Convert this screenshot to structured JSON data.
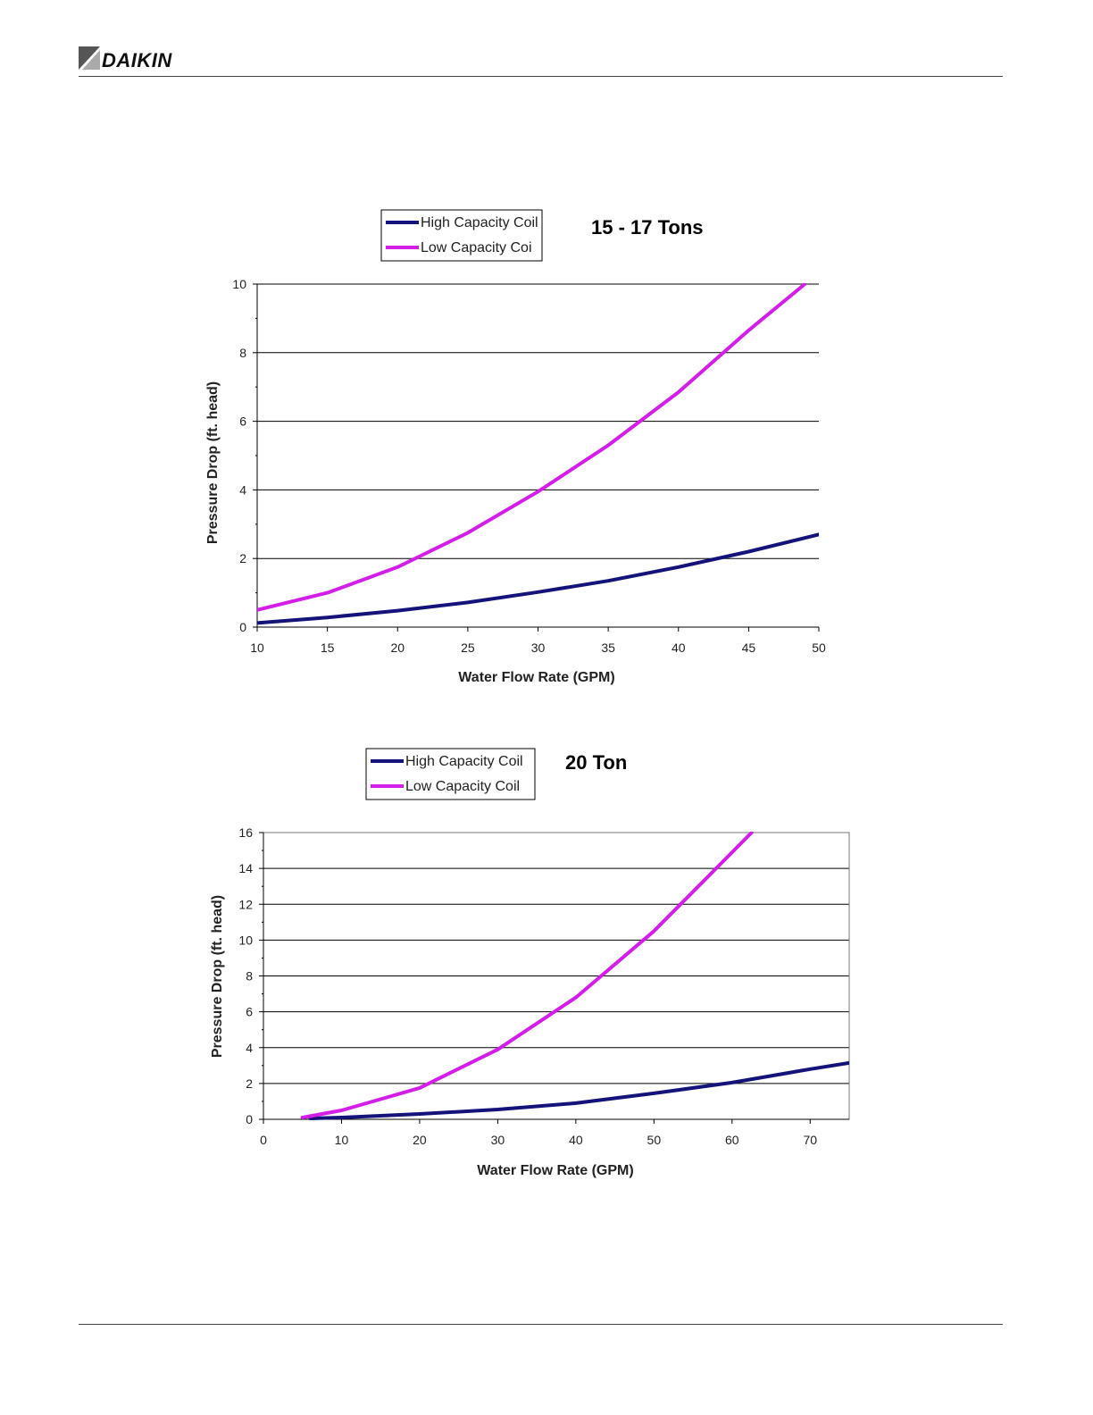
{
  "header": {
    "brand": "DAIKIN",
    "brand_color": "#111111",
    "mark_color": "#555555"
  },
  "chart_data": [
    {
      "type": "line",
      "title": "15 - 17 Tons",
      "xlabel": "Water Flow Rate (GPM)",
      "ylabel": "Pressure Drop (ft. head)",
      "xlim": [
        10,
        50
      ],
      "ylim": [
        0,
        10
      ],
      "xticks": [
        10,
        15,
        20,
        25,
        30,
        35,
        40,
        45,
        50
      ],
      "yticks": [
        0,
        2,
        4,
        6,
        8,
        10
      ],
      "grid": "horizontal",
      "legend": "top-left",
      "series": [
        {
          "name": "High Capacity Coil",
          "color": "#13137a",
          "x": [
            10,
            15,
            20,
            25,
            30,
            35,
            40,
            45,
            50
          ],
          "y": [
            0.12,
            0.28,
            0.48,
            0.72,
            1.02,
            1.35,
            1.75,
            2.2,
            2.7
          ]
        },
        {
          "name": "Low Capacity Coi",
          "color": "#d21ee6",
          "x": [
            10,
            15,
            20,
            25,
            30,
            35,
            40,
            45,
            49
          ],
          "y": [
            0.5,
            1.0,
            1.75,
            2.75,
            3.95,
            5.3,
            6.85,
            8.65,
            10.0
          ]
        }
      ]
    },
    {
      "type": "line",
      "title": "20 Ton",
      "xlabel": "Water Flow Rate (GPM)",
      "ylabel": "Pressure Drop (ft. head)",
      "xlim": [
        0,
        75
      ],
      "ylim": [
        0,
        16
      ],
      "xticks": [
        0,
        10,
        20,
        30,
        40,
        50,
        60,
        70
      ],
      "yticks": [
        0,
        2,
        4,
        6,
        8,
        10,
        12,
        14,
        16
      ],
      "grid": "horizontal",
      "legend": "top-left",
      "series": [
        {
          "name": "High Capacity Coil",
          "color": "#13137a",
          "x": [
            6,
            10,
            20,
            30,
            40,
            50,
            60,
            70,
            75
          ],
          "y": [
            0.05,
            0.1,
            0.3,
            0.55,
            0.9,
            1.45,
            2.05,
            2.8,
            3.15
          ]
        },
        {
          "name": "Low Capacity Coil",
          "color": "#d21ee6",
          "x": [
            5,
            10,
            20,
            30,
            40,
            50,
            55,
            60,
            62.5
          ],
          "y": [
            0.1,
            0.5,
            1.75,
            3.9,
            6.8,
            10.5,
            12.7,
            14.9,
            16.0
          ]
        }
      ]
    }
  ]
}
